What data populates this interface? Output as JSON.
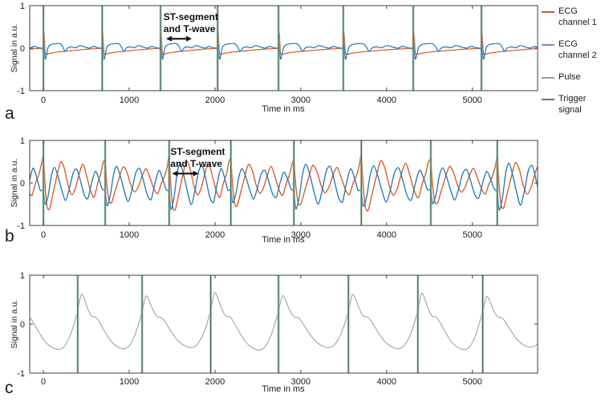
{
  "figure": {
    "panel_labels": [
      "a",
      "b",
      "c"
    ],
    "colors": {
      "axis": "#3f3f3f",
      "text": "#1a1a1a",
      "trigger_dark": "#3c6e50",
      "trigger_light": "#aec4b2",
      "annotation": "#111111"
    }
  },
  "legend": {
    "entries": [
      {
        "name": "ecg-channel-1",
        "label": "ECG channel 1",
        "color": "#d05a2e"
      },
      {
        "name": "ecg-channel-2",
        "label": "ECG channel 2",
        "color": "#8187c7"
      },
      {
        "name": "pulse",
        "label": "Pulse",
        "color": "#9a9a9a"
      },
      {
        "name": "trigger-signal",
        "label": "Trigger signal",
        "color": "#578064"
      }
    ]
  },
  "chart_data": [
    {
      "id": "a",
      "type": "line",
      "title": "",
      "xlabel": "Time in ms",
      "ylabel": "Signal in a.u.",
      "xlim": [
        -160,
        5760
      ],
      "ylim": [
        -1,
        1
      ],
      "xticks": [
        0,
        1000,
        2000,
        3000,
        4000,
        5000
      ],
      "yticks": [
        -1,
        0,
        1
      ],
      "grid": false,
      "triggers": [
        0,
        685,
        1365,
        2030,
        2740,
        3495,
        4310,
        5105
      ],
      "annotation": {
        "text": [
          "ST-segment",
          "and T-wave"
        ],
        "text_x": 1400,
        "text_y": [
          0.66,
          0.38
        ],
        "arrow_x": [
          1430,
          1730
        ],
        "arrow_y": 0.22
      },
      "series": [
        {
          "name": "ECG channel 1",
          "color": "#d9541f",
          "width": 1.2,
          "jitter": 0,
          "phase": 0,
          "template": [
            [
              0,
              -0.02
            ],
            [
              0.012,
              0.35
            ],
            [
              0.03,
              -0.1
            ],
            [
              0.06,
              -0.14
            ],
            [
              0.12,
              -0.12
            ],
            [
              0.25,
              -0.09
            ],
            [
              0.4,
              -0.07
            ],
            [
              0.55,
              -0.05
            ],
            [
              0.7,
              -0.03
            ],
            [
              0.85,
              -0.015
            ],
            [
              0.95,
              -0.005
            ],
            [
              0.985,
              -0.02
            ]
          ]
        },
        {
          "name": "ECG channel 2",
          "color": "#1b75b8",
          "width": 1.2,
          "jitter": 0,
          "phase": 0,
          "template": [
            [
              0,
              0.02
            ],
            [
              0.01,
              0.1
            ],
            [
              0.03,
              -0.25
            ],
            [
              0.05,
              -0.18
            ],
            [
              0.08,
              0.02
            ],
            [
              0.12,
              0.08
            ],
            [
              0.18,
              0.1
            ],
            [
              0.25,
              0.11
            ],
            [
              0.3,
              0.09
            ],
            [
              0.34,
              0.0
            ],
            [
              0.37,
              -0.08
            ],
            [
              0.41,
              0.0
            ],
            [
              0.47,
              0.03
            ],
            [
              0.55,
              0.01
            ],
            [
              0.62,
              0.06
            ],
            [
              0.7,
              0.03
            ],
            [
              0.78,
              0.0
            ],
            [
              0.85,
              0.04
            ],
            [
              0.92,
              0.01
            ],
            [
              0.97,
              0.0
            ]
          ]
        }
      ]
    },
    {
      "id": "b",
      "type": "line",
      "title": "",
      "xlabel": "Time in ms",
      "ylabel": "Signal in a.u.",
      "xlim": [
        -160,
        5760
      ],
      "ylim": [
        -1,
        1
      ],
      "xticks": [
        0,
        1000,
        2000,
        3000,
        4000,
        5000
      ],
      "yticks": [
        -1,
        0,
        1
      ],
      "grid": false,
      "triggers": [
        0,
        720,
        1465,
        2185,
        2920,
        3705,
        4515,
        5290
      ],
      "annotation": {
        "text": [
          "ST-segment",
          "and T-wave"
        ],
        "text_x": 1480,
        "text_y": [
          0.66,
          0.38
        ],
        "arrow_x": [
          1500,
          1810
        ],
        "arrow_y": 0.22
      },
      "series": [
        {
          "name": "ECG channel 1",
          "color": "#d9541f",
          "width": 1.3,
          "jitter": 0.16,
          "phase": 0,
          "template": [
            [
              0,
              0.55
            ],
            [
              0.03,
              -0.1
            ],
            [
              0.06,
              -0.5
            ],
            [
              0.1,
              -0.55
            ],
            [
              0.16,
              -0.2
            ],
            [
              0.22,
              0.15
            ],
            [
              0.28,
              0.45
            ],
            [
              0.34,
              0.3
            ],
            [
              0.4,
              -0.05
            ],
            [
              0.46,
              -0.25
            ],
            [
              0.52,
              -0.1
            ],
            [
              0.58,
              0.2
            ],
            [
              0.64,
              0.4
            ],
            [
              0.7,
              0.15
            ],
            [
              0.76,
              -0.15
            ],
            [
              0.82,
              -0.3
            ],
            [
              0.88,
              0.0
            ],
            [
              0.93,
              0.2
            ],
            [
              0.97,
              0.45
            ]
          ]
        },
        {
          "name": "ECG channel 2",
          "color": "#1b75b8",
          "width": 1.3,
          "jitter": 0.16,
          "phase": 1.3,
          "template": [
            [
              0,
              -0.2
            ],
            [
              0.03,
              -0.55
            ],
            [
              0.08,
              -0.3
            ],
            [
              0.13,
              0.2
            ],
            [
              0.18,
              0.4
            ],
            [
              0.24,
              0.15
            ],
            [
              0.3,
              -0.2
            ],
            [
              0.36,
              -0.45
            ],
            [
              0.42,
              -0.15
            ],
            [
              0.48,
              0.25
            ],
            [
              0.54,
              0.35
            ],
            [
              0.6,
              0.05
            ],
            [
              0.66,
              -0.3
            ],
            [
              0.72,
              -0.4
            ],
            [
              0.78,
              0.0
            ],
            [
              0.84,
              0.3
            ],
            [
              0.9,
              0.1
            ],
            [
              0.95,
              -0.15
            ]
          ]
        }
      ]
    },
    {
      "id": "c",
      "type": "line",
      "title": "",
      "xlabel": "Time in ms",
      "ylabel": "Signal in a.u.",
      "xlim": [
        -160,
        5760
      ],
      "ylim": [
        -1,
        1
      ],
      "xticks": [
        0,
        1000,
        2000,
        3000,
        4000,
        5000
      ],
      "yticks": [
        -1,
        0,
        1
      ],
      "grid": false,
      "triggers": [
        400,
        1150,
        1950,
        2740,
        3555,
        4365,
        5120
      ],
      "annotation": null,
      "series": [
        {
          "name": "Pulse",
          "color": "#9a9a9a",
          "width": 1,
          "jitter": 0.06,
          "phase": 0.6,
          "template": [
            [
              0,
              0.28
            ],
            [
              0.055,
              0.6
            ],
            [
              0.1,
              0.52
            ],
            [
              0.16,
              0.3
            ],
            [
              0.22,
              0.16
            ],
            [
              0.28,
              0.14
            ],
            [
              0.33,
              0.06
            ],
            [
              0.42,
              -0.15
            ],
            [
              0.52,
              -0.35
            ],
            [
              0.62,
              -0.46
            ],
            [
              0.72,
              -0.5
            ],
            [
              0.8,
              -0.44
            ],
            [
              0.88,
              -0.25
            ],
            [
              0.94,
              -0.02
            ]
          ]
        }
      ]
    }
  ]
}
